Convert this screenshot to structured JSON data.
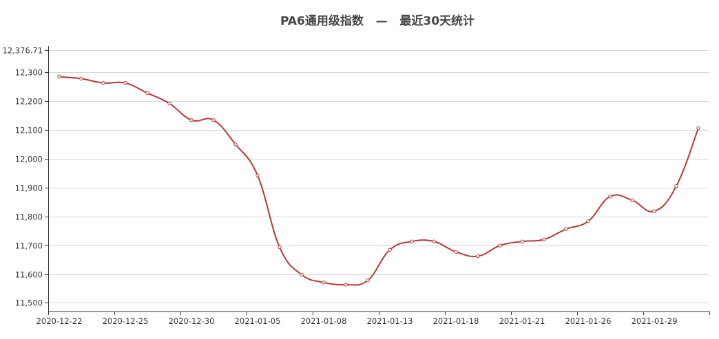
{
  "chart_data": {
    "type": "line",
    "title": "PA6通用级指数   —   最近30天统计",
    "xlabel": "",
    "ylabel": "",
    "ylim": [
      11470,
      12376.71
    ],
    "y_ticks": [
      "12,376.71",
      "12,300",
      "12,200",
      "12,100",
      "12,000",
      "11,900",
      "11,800",
      "11,700",
      "11,600",
      "11,500"
    ],
    "y_tick_values": [
      12376.71,
      12300,
      12200,
      12100,
      12000,
      11900,
      11800,
      11700,
      11600,
      11500
    ],
    "x_tick_labels": [
      "2020-12-22",
      "2020-12-25",
      "2020-12-30",
      "2021-01-05",
      "2021-01-08",
      "2021-01-13",
      "2021-01-18",
      "2021-01-21",
      "2021-01-26",
      "2021-01-29"
    ],
    "grid": true,
    "line_color": "#b03a3a",
    "series": [
      {
        "values": [
          12285,
          12278,
          12263,
          12263,
          12228,
          12192,
          12134,
          12134,
          12050,
          11942,
          11693,
          11598,
          11571,
          11563,
          11578,
          11684,
          11713,
          11713,
          11677,
          11662,
          11699,
          11713,
          11720,
          11756,
          11783,
          11869,
          11856,
          11818,
          11905,
          12106
        ]
      }
    ]
  }
}
